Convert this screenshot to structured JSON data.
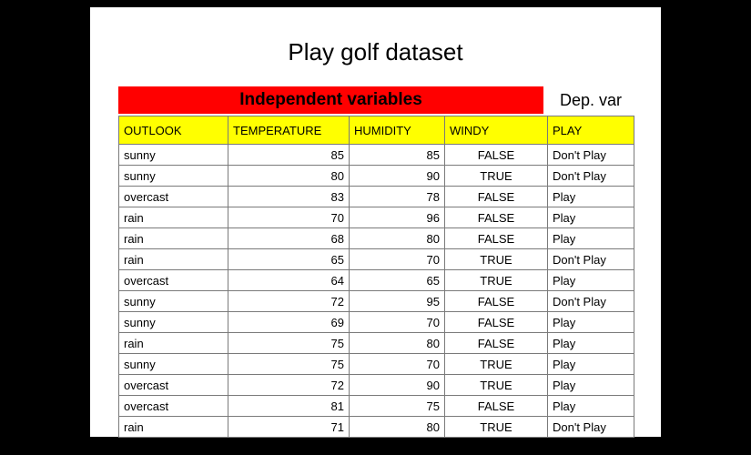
{
  "slide": {
    "title": "Play golf dataset",
    "band_label": "Independent variables",
    "dep_label": "Dep. var",
    "band_color": "#ff0000",
    "header_color": "#ffff00"
  },
  "table": {
    "headers": [
      "OUTLOOK",
      "TEMPERATURE",
      "HUMIDITY",
      "WINDY",
      "PLAY"
    ],
    "rows": [
      [
        "sunny",
        "85",
        "85",
        "FALSE",
        "Don't Play"
      ],
      [
        "sunny",
        "80",
        "90",
        "TRUE",
        "Don't Play"
      ],
      [
        "overcast",
        "83",
        "78",
        "FALSE",
        "Play"
      ],
      [
        "rain",
        "70",
        "96",
        "FALSE",
        "Play"
      ],
      [
        "rain",
        "68",
        "80",
        "FALSE",
        "Play"
      ],
      [
        "rain",
        "65",
        "70",
        "TRUE",
        "Don't Play"
      ],
      [
        "overcast",
        "64",
        "65",
        "TRUE",
        "Play"
      ],
      [
        "sunny",
        "72",
        "95",
        "FALSE",
        "Don't Play"
      ],
      [
        "sunny",
        "69",
        "70",
        "FALSE",
        "Play"
      ],
      [
        "rain",
        "75",
        "80",
        "FALSE",
        "Play"
      ],
      [
        "sunny",
        "75",
        "70",
        "TRUE",
        "Play"
      ],
      [
        "overcast",
        "72",
        "90",
        "TRUE",
        "Play"
      ],
      [
        "overcast",
        "81",
        "75",
        "FALSE",
        "Play"
      ],
      [
        "rain",
        "71",
        "80",
        "TRUE",
        "Don't Play"
      ]
    ]
  }
}
